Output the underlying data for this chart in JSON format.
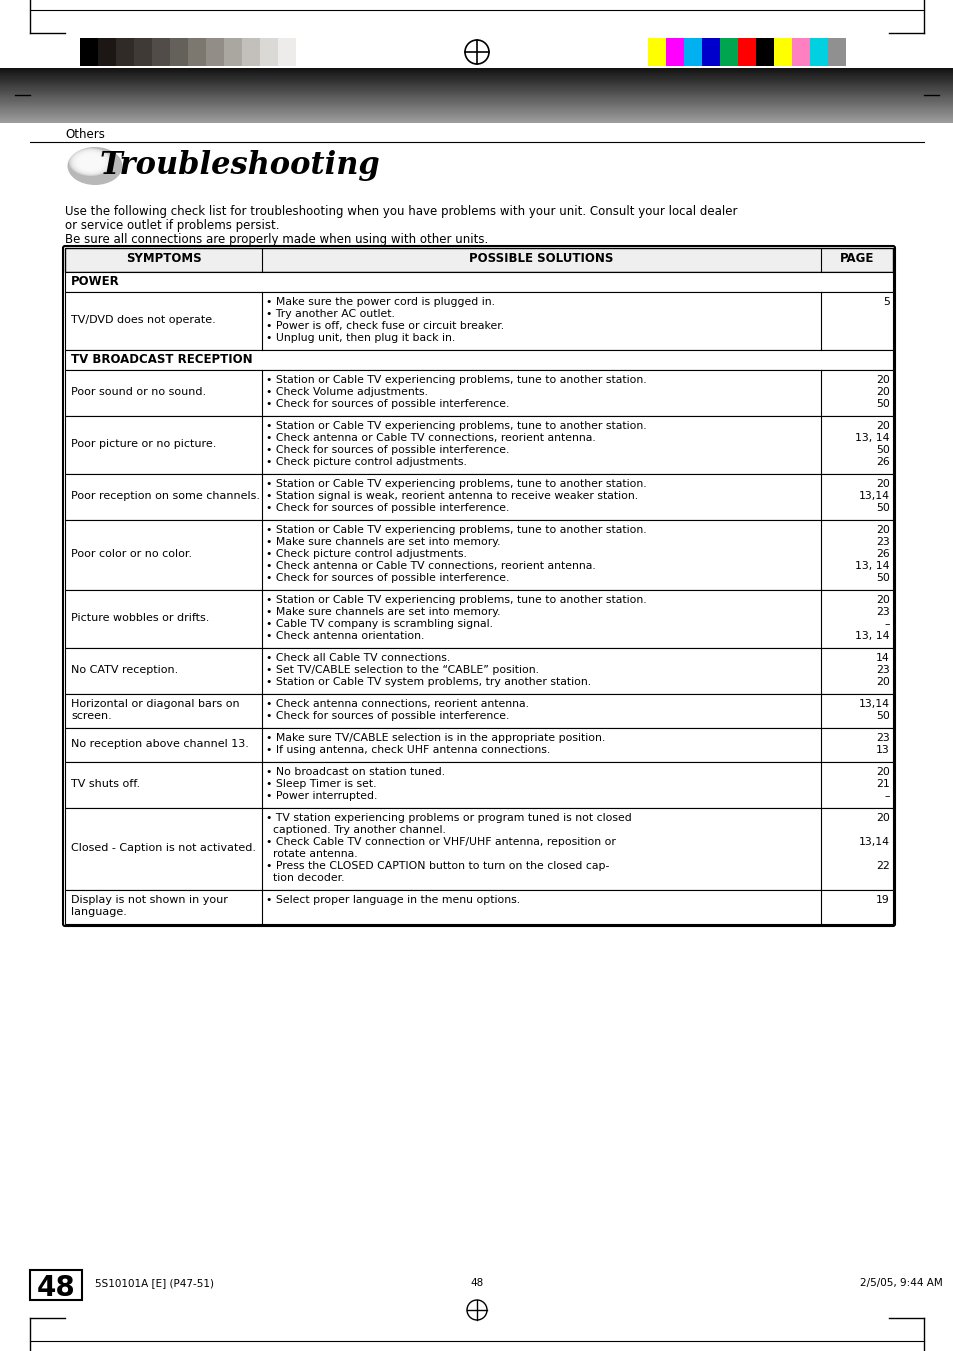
{
  "page_bg": "#ffffff",
  "section_label": "Others",
  "title": "Troubleshooting",
  "intro_line1": "Use the following check list for troubleshooting when you have problems with your unit. Consult your local dealer",
  "intro_line2": "or service outlet if problems persist.",
  "intro_line3": "Be sure all connections are properly made when using with other units.",
  "table_header": [
    "SYMPTOMS",
    "POSSIBLE SOLUTIONS",
    "PAGE"
  ],
  "table_data": [
    {
      "section": "POWER",
      "rows": [
        {
          "symptom": "TV/DVD does not operate.",
          "solutions": [
            "• Make sure the power cord is plugged in.",
            "• Try another AC outlet.",
            "• Power is off, check fuse or circuit breaker.",
            "• Unplug unit, then plug it back in."
          ],
          "pages": [
            "5",
            "",
            "",
            ""
          ]
        }
      ]
    },
    {
      "section": "TV BROADCAST RECEPTION",
      "rows": [
        {
          "symptom": "Poor sound or no sound.",
          "solutions": [
            "• Station or Cable TV experiencing problems, tune to another station.",
            "• Check Volume adjustments.",
            "• Check for sources of possible interference."
          ],
          "pages": [
            "20",
            "20",
            "50"
          ]
        },
        {
          "symptom": "Poor picture or no picture.",
          "solutions": [
            "• Station or Cable TV experiencing problems, tune to another station.",
            "• Check antenna or Cable TV connections, reorient antenna.",
            "• Check for sources of possible interference.",
            "• Check picture control adjustments."
          ],
          "pages": [
            "20",
            "13, 14",
            "50",
            "26"
          ]
        },
        {
          "symptom": "Poor reception on some channels.",
          "solutions": [
            "• Station or Cable TV experiencing problems, tune to another station.",
            "• Station signal is weak, reorient antenna to receive weaker station.",
            "• Check for sources of possible interference."
          ],
          "pages": [
            "20",
            "13,14",
            "50"
          ]
        },
        {
          "symptom": "Poor color or no color.",
          "solutions": [
            "• Station or Cable TV experiencing problems, tune to another station.",
            "• Make sure channels are set into memory.",
            "• Check picture control adjustments.",
            "• Check antenna or Cable TV connections, reorient antenna.",
            "• Check for sources of possible interference."
          ],
          "pages": [
            "20",
            "23",
            "26",
            "13, 14",
            "50"
          ]
        },
        {
          "symptom": "Picture wobbles or drifts.",
          "solutions": [
            "• Station or Cable TV experiencing problems, tune to another station.",
            "• Make sure channels are set into memory.",
            "• Cable TV company is scrambling signal.",
            "• Check antenna orientation."
          ],
          "pages": [
            "20",
            "23",
            "–",
            "13, 14"
          ]
        },
        {
          "symptom": "No CATV reception.",
          "solutions": [
            "• Check all Cable TV connections.",
            "• Set TV/CABLE selection to the “CABLE” position.",
            "• Station or Cable TV system problems, try another station."
          ],
          "pages": [
            "14",
            "23",
            "20"
          ]
        },
        {
          "symptom": "Horizontal or diagonal bars on\nscreen.",
          "solutions": [
            "• Check antenna connections, reorient antenna.",
            "• Check for sources of possible interference."
          ],
          "pages": [
            "13,14",
            "50"
          ]
        },
        {
          "symptom": "No reception above channel 13.",
          "solutions": [
            "• Make sure TV/CABLE selection is in the appropriate position.",
            "• If using antenna, check UHF antenna connections."
          ],
          "pages": [
            "23",
            "13"
          ]
        },
        {
          "symptom": "TV shuts off.",
          "solutions": [
            "• No broadcast on station tuned.",
            "• Sleep Timer is set.",
            "• Power interrupted."
          ],
          "pages": [
            "20",
            "21",
            "–"
          ]
        },
        {
          "symptom": "Closed - Caption is not activated.",
          "solutions": [
            "• TV station experiencing problems or program tuned is not closed\n  captioned. Try another channel.",
            "• Check Cable TV connection or VHF/UHF antenna, reposition or\n  rotate antenna.",
            "• Press the CLOSED CAPTION button to turn on the closed cap-\n  tion decoder."
          ],
          "pages": [
            "20",
            "13,14",
            "22"
          ]
        },
        {
          "symptom": "Display is not shown in your\nlanguage.",
          "solutions": [
            "• Select proper language in the menu options."
          ],
          "pages": [
            "19"
          ]
        }
      ]
    }
  ],
  "footer_page": "48",
  "footer_left": "5S​10101A [E] (P47-51)",
  "footer_center": "48",
  "footer_right": "2/5/05, 9:44 AM",
  "colors_left": [
    "#000000",
    "#1c1715",
    "#302b27",
    "#3f3a35",
    "#514c47",
    "#64605a",
    "#7c7870",
    "#928e87",
    "#aaa7a1",
    "#c3c0bb",
    "#dbd9d5",
    "#eeecea",
    "#ffffff"
  ],
  "colors_right": [
    "#ffff00",
    "#ff00ff",
    "#00b0f0",
    "#0000cc",
    "#00a550",
    "#ff0000",
    "#000000",
    "#ffff00",
    "#ff80c0",
    "#00d0e0",
    "#909090"
  ]
}
